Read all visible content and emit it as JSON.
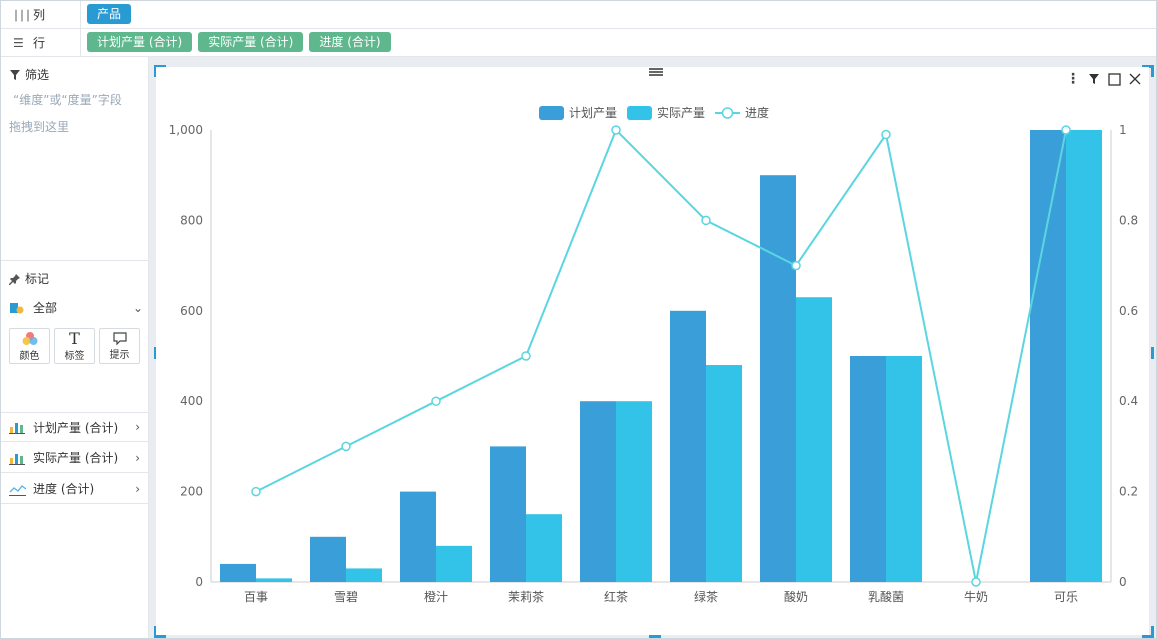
{
  "shelves": {
    "columns": {
      "label": "列",
      "icon": "columns-icon",
      "pills": [
        "产品"
      ]
    },
    "rows": {
      "label": "行",
      "icon": "rows-list-icon",
      "pills": [
        "计划产量 (合计)",
        "实际产量 (合计)",
        "进度 (合计)"
      ]
    }
  },
  "filter": {
    "title": "筛选",
    "hint_line1": "“维度”或“度量”字段",
    "hint_line2": "拖拽到这里"
  },
  "marks": {
    "title": "标记",
    "all_label": "全部",
    "buttons": [
      "颜色",
      "标签",
      "提示"
    ],
    "fields": [
      "计划产量 (合计)",
      "实际产量 (合计)",
      "进度 (合计)"
    ]
  },
  "chart_data": {
    "type": "bar",
    "categories": [
      "百事",
      "雪碧",
      "橙汁",
      "茉莉茶",
      "红茶",
      "绿茶",
      "酸奶",
      "乳酸菌",
      "牛奶",
      "可乐"
    ],
    "series": [
      {
        "name": "计划产量",
        "type": "bar",
        "color": "#3a9fd9",
        "values": [
          40,
          100,
          200,
          300,
          400,
          600,
          900,
          500,
          0,
          1000
        ]
      },
      {
        "name": "实际产量",
        "type": "bar",
        "color": "#33c2e8",
        "values": [
          8,
          30,
          80,
          150,
          400,
          480,
          630,
          500,
          0,
          1000
        ]
      },
      {
        "name": "进度",
        "type": "line",
        "axis": "right",
        "color": "#5bd5e0",
        "values": [
          0.2,
          0.3,
          0.4,
          0.5,
          1.0,
          0.8,
          0.7,
          0.99,
          0,
          1.0
        ]
      }
    ],
    "y_left": {
      "min": 0,
      "max": 1000,
      "ticks": [
        "0",
        "200",
        "400",
        "600",
        "800",
        "1,000"
      ]
    },
    "y_right": {
      "min": 0,
      "max": 1,
      "ticks": [
        "0",
        "0.2",
        "0.4",
        "0.6",
        "0.8",
        "1"
      ]
    },
    "legend": "top-center",
    "grid": false
  }
}
